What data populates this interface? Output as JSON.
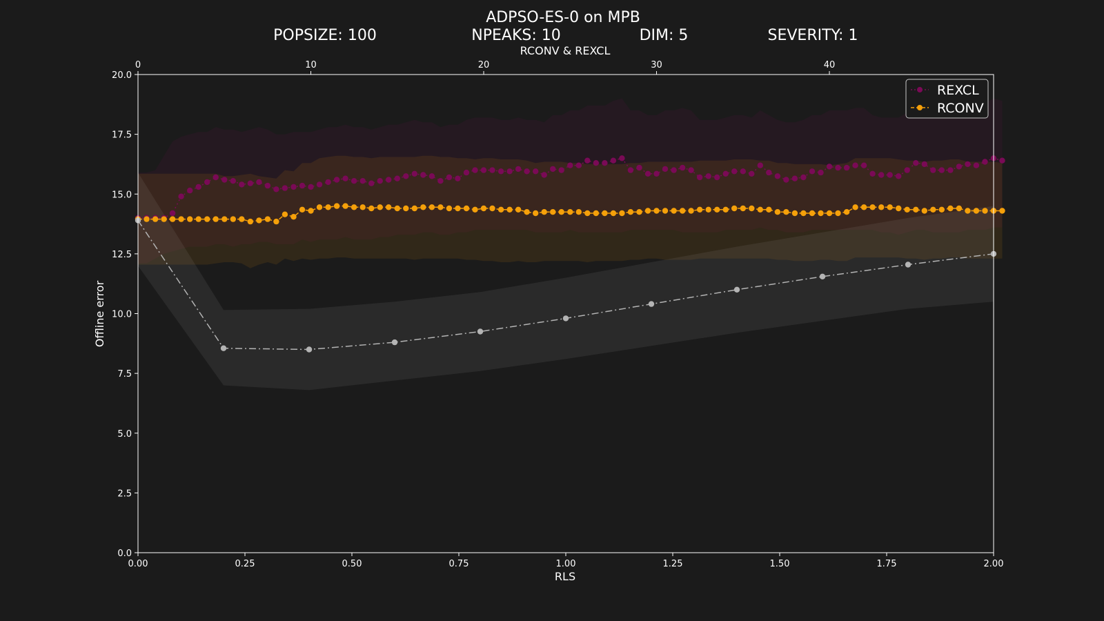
{
  "title": "ADPSO-ES-0 on MPB",
  "subtitles": [
    "POPSIZE: 100",
    "NPEAKS: 10",
    "DIM: 5",
    "SEVERITY: 1"
  ],
  "colors": {
    "background": "#1b1b1b",
    "rexcl": "#7a0a56",
    "rconv": "#f5a00a",
    "rls": "#b4b4b4",
    "axes": "#ffffff"
  },
  "chart_data": {
    "type": "line",
    "xlabel": "RLS",
    "x2label": "RCONV & REXCL",
    "ylabel": "Offline error",
    "xlim": [
      0,
      2
    ],
    "x2lim": [
      0,
      49.5
    ],
    "ylim": [
      0,
      20
    ],
    "xticks": [
      "0.00",
      "0.25",
      "0.50",
      "0.75",
      "1.00",
      "1.25",
      "1.50",
      "1.75",
      "2.00"
    ],
    "x2ticks": [
      "0",
      "10",
      "20",
      "30",
      "40"
    ],
    "yticks": [
      "0.0",
      "2.5",
      "5.0",
      "7.5",
      "10.0",
      "12.5",
      "15.0",
      "17.5",
      "20.0"
    ],
    "legend": {
      "position": "top-right",
      "entries": [
        "REXCL",
        "RCONV"
      ]
    },
    "series": [
      {
        "name": "REXCL",
        "axis": "top",
        "style": "dotted",
        "x_start": 0,
        "x_step": 0.5,
        "values": [
          14.0,
          14.0,
          14.0,
          14.0,
          14.2,
          14.9,
          15.15,
          15.3,
          15.5,
          15.7,
          15.6,
          15.55,
          15.4,
          15.45,
          15.5,
          15.35,
          15.2,
          15.25,
          15.3,
          15.35,
          15.3,
          15.4,
          15.5,
          15.6,
          15.65,
          15.55,
          15.55,
          15.45,
          15.55,
          15.6,
          15.65,
          15.75,
          15.85,
          15.8,
          15.75,
          15.55,
          15.7,
          15.65,
          15.9,
          16.0,
          16.0,
          16.0,
          15.95,
          15.95,
          16.05,
          15.95,
          15.95,
          15.8,
          16.05,
          16.0,
          16.2,
          16.2,
          16.4,
          16.3,
          16.3,
          16.4,
          16.5,
          16.0,
          16.1,
          15.85,
          15.85,
          16.05,
          16.0,
          16.1,
          16.0,
          15.7,
          15.75,
          15.7,
          15.85,
          15.95,
          15.95,
          15.85,
          16.2,
          15.9,
          15.75,
          15.6,
          15.65,
          15.7,
          15.95,
          15.9,
          16.15,
          16.1,
          16.1,
          16.2,
          16.2,
          15.85,
          15.8,
          15.8,
          15.75,
          16.0,
          16.3,
          16.25,
          16.0,
          16.0,
          16.0,
          16.15,
          16.25,
          16.2,
          16.35,
          16.5,
          16.4
        ],
        "band_lower": [
          12.1,
          12.1,
          12.3,
          12.5,
          12.6,
          12.7,
          12.8,
          12.8,
          12.8,
          12.9,
          12.9,
          12.8,
          12.9,
          12.9,
          13.0,
          13.0,
          12.9,
          12.9,
          12.9,
          13.1,
          13.0,
          13.1,
          13.1,
          13.1,
          13.2,
          13.1,
          13.1,
          13.1,
          13.2,
          13.2,
          13.3,
          13.3,
          13.3,
          13.4,
          13.4,
          13.3,
          13.3,
          13.4,
          13.4,
          13.5,
          13.5,
          13.5,
          13.5,
          13.5,
          13.5,
          13.5,
          13.4,
          13.4,
          13.4,
          13.4,
          13.5,
          13.4,
          13.4,
          13.4,
          13.4,
          13.4,
          13.4,
          13.5,
          13.5,
          13.5,
          13.5,
          13.5,
          13.5,
          13.4,
          13.4,
          13.4,
          13.4,
          13.4,
          13.5,
          13.5,
          13.5,
          13.5,
          13.6,
          13.5,
          13.5,
          13.4,
          13.4,
          13.4,
          13.5,
          13.5,
          13.5,
          13.5,
          13.5,
          13.5,
          13.5,
          13.5,
          13.4,
          13.4,
          13.3,
          13.4,
          13.5,
          13.5,
          13.4,
          13.4,
          13.4,
          13.4,
          13.5,
          13.5,
          13.5,
          13.6,
          13.6
        ],
        "band_upper": [
          15.9,
          15.9,
          16.0,
          16.6,
          17.2,
          17.4,
          17.5,
          17.6,
          17.6,
          17.8,
          17.7,
          17.7,
          17.6,
          17.7,
          17.8,
          17.7,
          17.5,
          17.5,
          17.6,
          17.6,
          17.6,
          17.7,
          17.8,
          17.8,
          17.9,
          17.8,
          17.8,
          17.7,
          17.8,
          17.9,
          17.9,
          18.0,
          18.1,
          18.0,
          18.0,
          17.8,
          17.9,
          17.9,
          18.1,
          18.2,
          18.2,
          18.2,
          18.1,
          18.1,
          18.2,
          18.1,
          18.1,
          18.0,
          18.3,
          18.3,
          18.5,
          18.5,
          18.7,
          18.7,
          18.7,
          18.9,
          19.0,
          18.5,
          18.5,
          18.3,
          18.3,
          18.5,
          18.5,
          18.6,
          18.5,
          18.1,
          18.1,
          18.1,
          18.2,
          18.3,
          18.3,
          18.2,
          18.5,
          18.3,
          18.1,
          18.0,
          18.0,
          18.1,
          18.3,
          18.3,
          18.5,
          18.5,
          18.5,
          18.6,
          18.6,
          18.3,
          18.2,
          18.2,
          18.2,
          18.4,
          18.7,
          18.7,
          18.5,
          18.5,
          18.5,
          18.6,
          18.7,
          18.7,
          18.8,
          19.0,
          18.9
        ]
      },
      {
        "name": "RCONV",
        "axis": "top",
        "style": "dashed",
        "x_start": 0,
        "x_step": 0.5,
        "values": [
          13.95,
          13.95,
          13.95,
          13.95,
          13.95,
          13.95,
          13.95,
          13.95,
          13.95,
          13.95,
          13.95,
          13.95,
          13.95,
          13.85,
          13.9,
          13.95,
          13.85,
          14.15,
          14.05,
          14.35,
          14.3,
          14.45,
          14.45,
          14.5,
          14.5,
          14.45,
          14.45,
          14.4,
          14.45,
          14.45,
          14.4,
          14.4,
          14.4,
          14.45,
          14.45,
          14.45,
          14.4,
          14.4,
          14.4,
          14.35,
          14.4,
          14.4,
          14.35,
          14.35,
          14.35,
          14.25,
          14.2,
          14.25,
          14.25,
          14.25,
          14.25,
          14.25,
          14.2,
          14.2,
          14.2,
          14.2,
          14.2,
          14.25,
          14.25,
          14.3,
          14.3,
          14.3,
          14.3,
          14.3,
          14.3,
          14.35,
          14.35,
          14.35,
          14.35,
          14.4,
          14.4,
          14.4,
          14.35,
          14.35,
          14.25,
          14.25,
          14.2,
          14.2,
          14.2,
          14.2,
          14.2,
          14.2,
          14.25,
          14.45,
          14.45,
          14.45,
          14.45,
          14.45,
          14.4,
          14.35,
          14.35,
          14.3,
          14.35,
          14.35,
          14.4,
          14.4,
          14.3,
          14.3,
          14.3,
          14.3,
          14.3
        ],
        "band_lower": [
          12.05,
          12.05,
          12.05,
          12.05,
          12.05,
          12.05,
          12.05,
          12.05,
          12.05,
          12.1,
          12.15,
          12.15,
          12.1,
          11.9,
          12.05,
          12.15,
          12.05,
          12.3,
          12.2,
          12.3,
          12.25,
          12.3,
          12.3,
          12.35,
          12.35,
          12.3,
          12.3,
          12.3,
          12.3,
          12.3,
          12.3,
          12.3,
          12.25,
          12.3,
          12.3,
          12.3,
          12.3,
          12.3,
          12.25,
          12.25,
          12.2,
          12.2,
          12.15,
          12.15,
          12.2,
          12.15,
          12.15,
          12.2,
          12.2,
          12.2,
          12.2,
          12.2,
          12.15,
          12.2,
          12.2,
          12.2,
          12.2,
          12.25,
          12.25,
          12.3,
          12.3,
          12.25,
          12.25,
          12.25,
          12.25,
          12.3,
          12.3,
          12.3,
          12.3,
          12.3,
          12.3,
          12.3,
          12.3,
          12.3,
          12.25,
          12.25,
          12.2,
          12.2,
          12.2,
          12.25,
          12.25,
          12.2,
          12.2,
          12.35,
          12.35,
          12.35,
          12.35,
          12.35,
          12.35,
          12.3,
          12.3,
          12.25,
          12.3,
          12.3,
          12.35,
          12.35,
          12.3,
          12.3,
          12.3,
          12.3,
          12.3
        ],
        "band_upper": [
          15.85,
          15.85,
          15.85,
          15.85,
          15.85,
          15.85,
          15.85,
          15.85,
          15.85,
          15.85,
          15.75,
          15.75,
          15.8,
          15.85,
          15.75,
          15.7,
          15.65,
          16.0,
          15.95,
          16.3,
          16.3,
          16.5,
          16.55,
          16.6,
          16.6,
          16.55,
          16.55,
          16.5,
          16.55,
          16.55,
          16.55,
          16.55,
          16.55,
          16.6,
          16.6,
          16.55,
          16.55,
          16.5,
          16.5,
          16.45,
          16.5,
          16.5,
          16.45,
          16.45,
          16.45,
          16.4,
          16.3,
          16.35,
          16.35,
          16.35,
          16.3,
          16.3,
          16.25,
          16.25,
          16.25,
          16.25,
          16.25,
          16.3,
          16.3,
          16.35,
          16.35,
          16.35,
          16.35,
          16.35,
          16.35,
          16.4,
          16.4,
          16.4,
          16.4,
          16.45,
          16.45,
          16.45,
          16.4,
          16.4,
          16.3,
          16.3,
          16.25,
          16.25,
          16.25,
          16.25,
          16.2,
          16.25,
          16.3,
          16.5,
          16.5,
          16.5,
          16.5,
          16.5,
          16.45,
          16.4,
          16.4,
          16.35,
          16.4,
          16.4,
          16.45,
          16.45,
          16.35,
          16.35,
          16.35,
          16.35,
          16.3
        ]
      },
      {
        "axis": "bottom",
        "style": "dashdot",
        "x": [
          0.0,
          0.2,
          0.4,
          0.6,
          0.8,
          1.0,
          1.2,
          1.4,
          1.6,
          1.8,
          2.0
        ],
        "values": [
          13.9,
          8.55,
          8.5,
          8.8,
          9.25,
          9.8,
          10.4,
          11.0,
          11.55,
          12.05,
          12.5
        ],
        "band_lower": [
          12.0,
          7.0,
          6.8,
          7.2,
          7.6,
          8.1,
          8.65,
          9.2,
          9.7,
          10.2,
          10.5
        ],
        "band_upper": [
          15.9,
          10.15,
          10.2,
          10.5,
          10.9,
          11.5,
          12.15,
          12.8,
          13.4,
          14.0,
          14.5
        ]
      }
    ]
  }
}
